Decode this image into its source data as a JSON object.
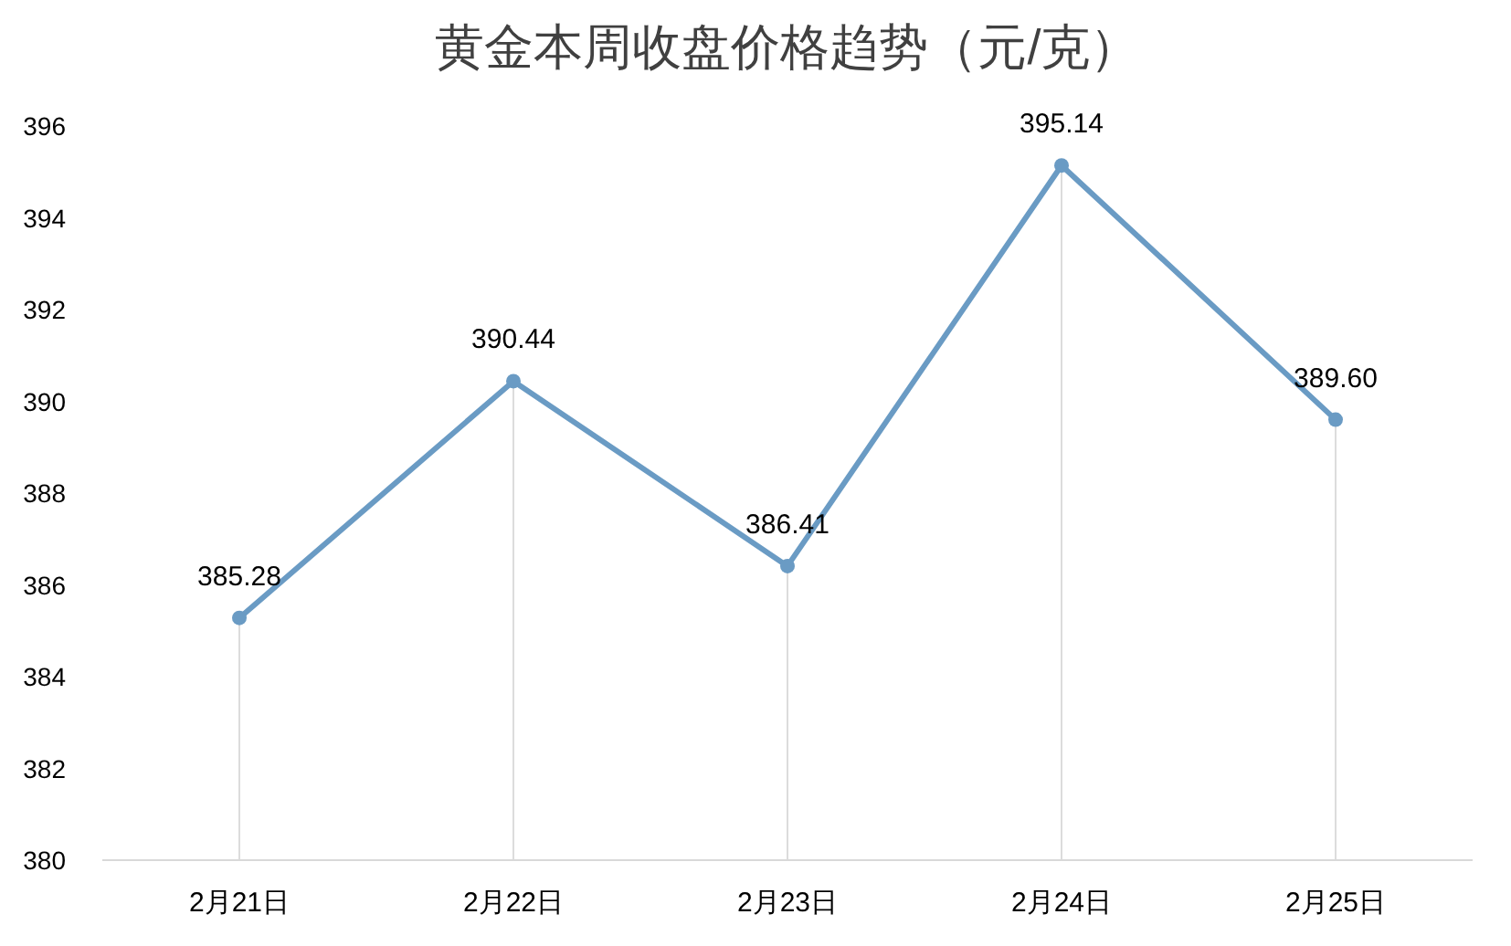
{
  "chart_data": {
    "type": "line",
    "title": "黄金本周收盘价格趋势（元/克）",
    "categories": [
      "2月21日",
      "2月22日",
      "2月23日",
      "2月24日",
      "2月25日"
    ],
    "series": [
      {
        "color": "#6a9bc4",
        "values": [
          385.28,
          390.44,
          386.41,
          395.14,
          389.6
        ],
        "value_labels": [
          "385.28",
          "390.44",
          "386.41",
          "395.14",
          "389.60"
        ]
      }
    ],
    "ylim": [
      380,
      396
    ],
    "yticks": [
      380,
      382,
      384,
      386,
      388,
      390,
      392,
      394,
      396
    ],
    "grid": "x",
    "marker": "circle",
    "line_style": "solid"
  }
}
